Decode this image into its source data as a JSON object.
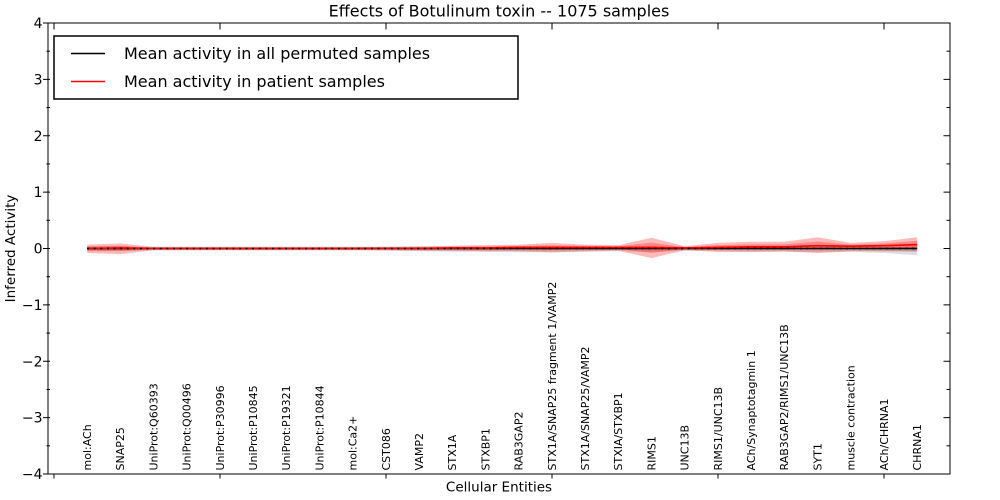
{
  "chart_data": {
    "type": "line",
    "title": "Effects of Botulinum toxin -- 1075 samples",
    "xlabel": "Cellular Entities",
    "ylabel": "Inferred Activity",
    "ylim": [
      -4,
      4
    ],
    "yticks": [
      -4,
      -3,
      -2,
      -1,
      0,
      1,
      2,
      3,
      4
    ],
    "y_minor_tick_step": 0.5,
    "x_ticks_unlabeled": [
      0,
      5,
      10,
      15,
      20,
      25
    ],
    "grid": false,
    "legend_position": "upper-left",
    "categories": [
      "mol:ACh",
      "SNAP25",
      "UniProt:Q60393",
      "UniProt:Q00496",
      "UniProt:P30996",
      "UniProt:P10845",
      "UniProt:P19321",
      "UniProt:P10844",
      "mol:Ca2+",
      "CST086",
      "VAMP2",
      "STX1A",
      "STXBP1",
      "RAB3GAP2",
      "STX1A/SNAP25 fragment 1/VAMP2",
      "STX1A/SNAP25/VAMP2",
      "STXIA/STXBP1",
      "RIMS1",
      "UNC13B",
      "RIMS1/UNC13B",
      "ACh/Synaptotagmin 1",
      "RAB3GAP2/RIMS1/UNC13B",
      "SYT1",
      "muscle contraction",
      "ACh/CHRNA1",
      "CHRNA1"
    ],
    "series": [
      {
        "name": "Mean activity in all permuted samples",
        "color": "#000000",
        "values": [
          0,
          0,
          0,
          0,
          0,
          0,
          0,
          0,
          0,
          0,
          0,
          0,
          0,
          0,
          0,
          0,
          0,
          0,
          0,
          0,
          0,
          0,
          0,
          0,
          0,
          0
        ]
      },
      {
        "name": "Mean activity in patient samples",
        "color": "#ff0000",
        "values": [
          0.0,
          0.01,
          0.0,
          0.0,
          0.0,
          0.0,
          0.0,
          0.0,
          0.0,
          0.0,
          0.0,
          0.01,
          0.01,
          0.02,
          0.02,
          0.02,
          0.02,
          0.02,
          0.01,
          0.02,
          0.03,
          0.03,
          0.05,
          0.04,
          0.05,
          0.07
        ]
      }
    ],
    "bands": [
      {
        "series": "Mean activity in all permuted samples",
        "color": "#000000",
        "opacity": 0.13,
        "upper": [
          0.04,
          0.04,
          0.02,
          0.02,
          0.02,
          0.02,
          0.02,
          0.02,
          0.02,
          0.03,
          0.03,
          0.03,
          0.03,
          0.04,
          0.04,
          0.04,
          0.03,
          0.05,
          0.03,
          0.04,
          0.04,
          0.04,
          0.05,
          0.04,
          0.05,
          0.06
        ],
        "lower": [
          -0.05,
          -0.05,
          -0.03,
          -0.03,
          -0.03,
          -0.03,
          -0.03,
          -0.03,
          -0.03,
          -0.04,
          -0.05,
          -0.06,
          -0.06,
          -0.07,
          -0.07,
          -0.06,
          -0.05,
          -0.07,
          -0.04,
          -0.05,
          -0.06,
          -0.06,
          -0.07,
          -0.06,
          -0.08,
          -0.12
        ]
      },
      {
        "series": "Mean activity in patient samples",
        "color": "#ff0000",
        "opacity": 0.27,
        "upper": [
          0.07,
          0.09,
          0.03,
          0.03,
          0.03,
          0.03,
          0.03,
          0.03,
          0.03,
          0.03,
          0.04,
          0.05,
          0.06,
          0.07,
          0.1,
          0.07,
          0.06,
          0.19,
          0.04,
          0.1,
          0.12,
          0.12,
          0.2,
          0.1,
          0.13,
          0.2
        ],
        "lower": [
          -0.08,
          -0.1,
          -0.03,
          -0.03,
          -0.03,
          -0.03,
          -0.03,
          -0.03,
          -0.03,
          -0.03,
          -0.04,
          -0.04,
          -0.05,
          -0.05,
          -0.07,
          -0.05,
          -0.04,
          -0.17,
          -0.03,
          -0.06,
          -0.06,
          -0.05,
          -0.08,
          -0.05,
          -0.05,
          -0.05
        ]
      }
    ],
    "zero_reference_line": {
      "value": 0,
      "style": "dotted",
      "color": "#000000"
    }
  },
  "legend": {
    "entries": [
      {
        "label": "Mean activity in all permuted samples",
        "color": "#000000"
      },
      {
        "label": "Mean activity in patient samples",
        "color": "#ff0000"
      }
    ]
  },
  "colors": {
    "background": "#ffffff",
    "axis": "#000000",
    "permuted_line": "#000000",
    "patient_line": "#ff0000"
  }
}
